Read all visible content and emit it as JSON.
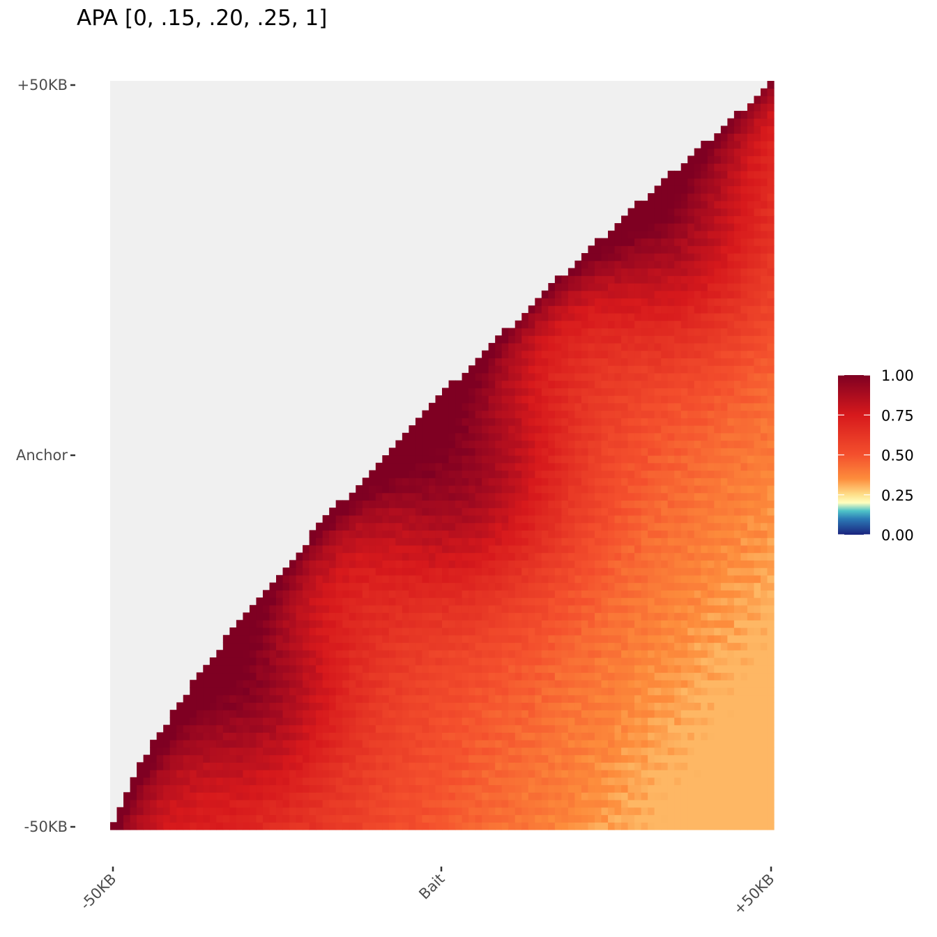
{
  "chart_data": {
    "type": "heatmap",
    "title": "APA [0, .15, .20, .25, 1]",
    "x_ticks": [
      "-50KB",
      "Bait",
      "+50KB"
    ],
    "y_ticks": [
      "+50KB",
      "Anchor",
      "-50KB"
    ],
    "grid": false,
    "legend_position": "right",
    "color_scale": {
      "min": 0,
      "max": 1,
      "breaks": [
        0,
        0.25,
        0.5,
        0.75,
        1
      ],
      "break_labels": [
        "0.00",
        "0.25",
        "0.50",
        "0.75",
        "1.00"
      ],
      "stops": [
        {
          "value": 0.0,
          "color": "#1a237e"
        },
        {
          "value": 0.1,
          "color": "#2c7bb6"
        },
        {
          "value": 0.15,
          "color": "#4fc3c8"
        },
        {
          "value": 0.2,
          "color": "#ffffbf"
        },
        {
          "value": 0.25,
          "color": "#fee08b"
        },
        {
          "value": 0.35,
          "color": "#fd8d3c"
        },
        {
          "value": 0.5,
          "color": "#f4502d"
        },
        {
          "value": 0.75,
          "color": "#d7191c"
        },
        {
          "value": 1.0,
          "color": "#7f0022"
        }
      ]
    },
    "masked_color": "#f0f0f0",
    "grid_size": 100,
    "description_note": ""
  }
}
